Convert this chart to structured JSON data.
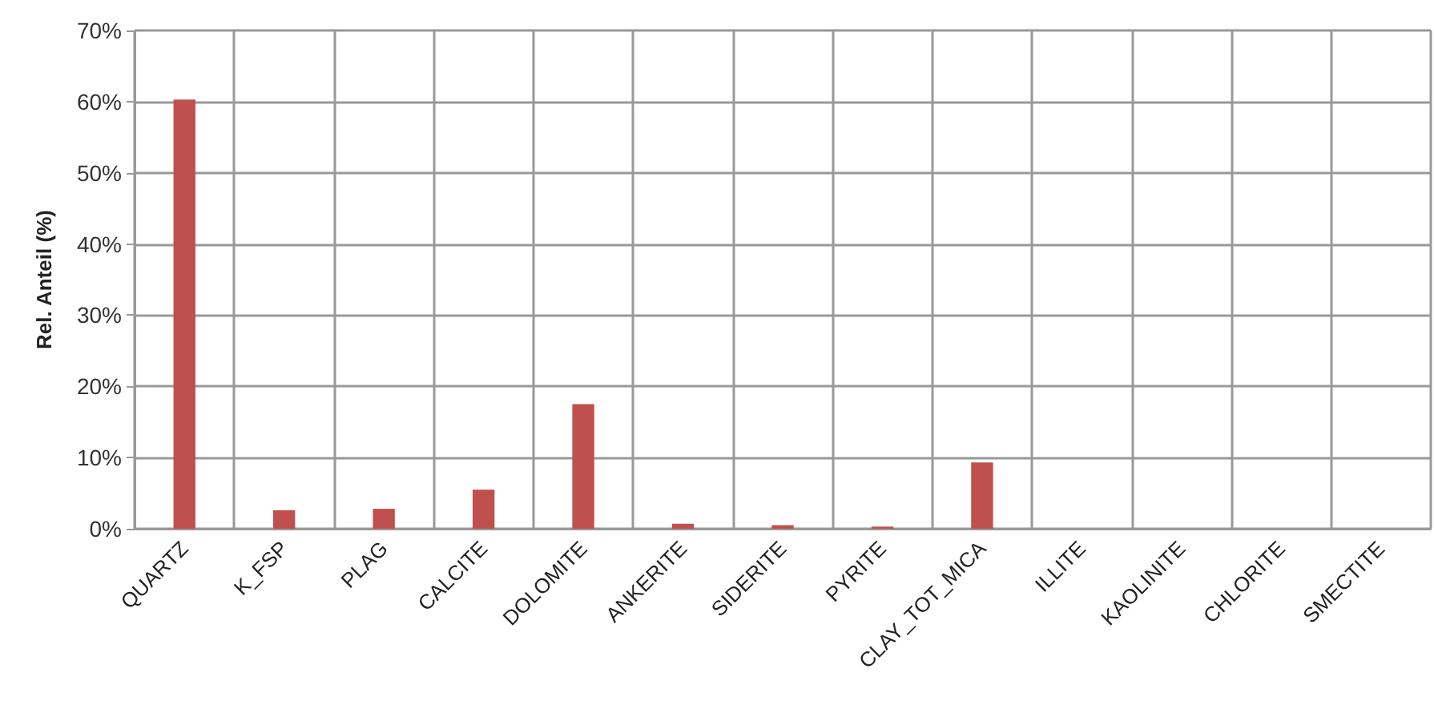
{
  "chart_data": {
    "type": "bar",
    "ylabel": "Rel. Anteil (%)",
    "categories": [
      "QUARTZ",
      "K_FSP",
      "PLAG",
      "CALCITE",
      "DOLOMITE",
      "ANKERITE",
      "SIDERITE",
      "PYRITE",
      "CLAY_TOT_MICA",
      "ILLITE",
      "KAOLINITE",
      "CHLORITE",
      "SMECTITE"
    ],
    "values": [
      60.3,
      2.6,
      2.8,
      5.5,
      17.5,
      0.7,
      0.5,
      0.3,
      9.3,
      0,
      0,
      0,
      0
    ],
    "color": "#c0504d",
    "ylim": [
      0,
      70
    ],
    "yticks": [
      {
        "value": 0,
        "label": "0%"
      },
      {
        "value": 10,
        "label": "10%"
      },
      {
        "value": 20,
        "label": "20%"
      },
      {
        "value": 30,
        "label": "30%"
      },
      {
        "value": 40,
        "label": "40%"
      },
      {
        "value": 50,
        "label": "50%"
      },
      {
        "value": 60,
        "label": "60%"
      },
      {
        "value": 70,
        "label": "70%"
      }
    ],
    "grid": true
  }
}
